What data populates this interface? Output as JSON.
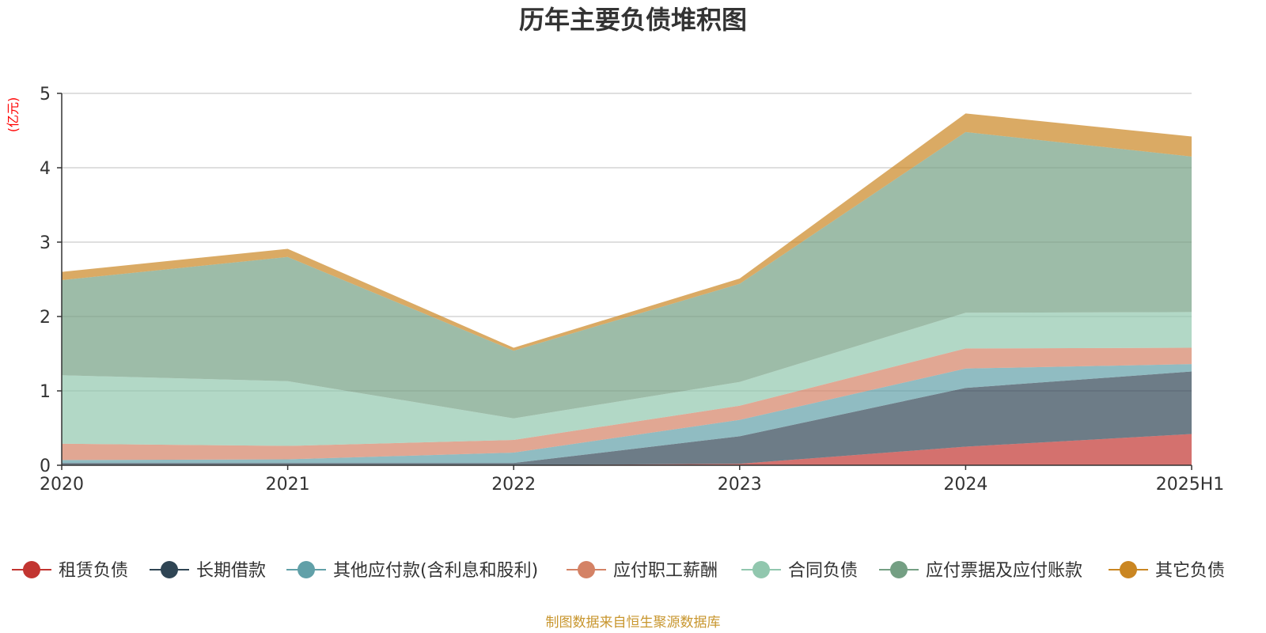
{
  "chart_data": {
    "type": "area",
    "stacked": true,
    "title": "历年主要负债堆积图",
    "unit": "(亿元)",
    "x": [
      "2020",
      "2021",
      "2022",
      "2023",
      "2024",
      "2025H1"
    ],
    "ylim": [
      0,
      5
    ],
    "yticks": [
      0,
      1,
      2,
      3,
      4,
      5
    ],
    "grid": true,
    "legend_position": "bottom",
    "series": [
      {
        "name": "租赁负债",
        "color": "#c23531",
        "values": [
          0.0,
          0.0,
          0.0,
          0.02,
          0.25,
          0.42
        ]
      },
      {
        "name": "长期借款",
        "color": "#2f4554",
        "values": [
          0.03,
          0.03,
          0.03,
          0.37,
          0.79,
          0.84
        ]
      },
      {
        "name": "其他应付款(含利息和股利)",
        "color": "#61a0a8",
        "values": [
          0.04,
          0.05,
          0.14,
          0.22,
          0.26,
          0.1
        ]
      },
      {
        "name": "应付职工薪酬",
        "color": "#d48265",
        "values": [
          0.22,
          0.18,
          0.17,
          0.19,
          0.27,
          0.22
        ]
      },
      {
        "name": "合同负债",
        "color": "#91c7ae",
        "values": [
          0.92,
          0.87,
          0.29,
          0.32,
          0.48,
          0.48
        ]
      },
      {
        "name": "应付票据及应付账款",
        "color": "#749f83",
        "values": [
          1.28,
          1.67,
          0.91,
          1.32,
          2.43,
          2.09
        ]
      },
      {
        "name": "其它负债",
        "color": "#ca8622",
        "values": [
          0.11,
          0.11,
          0.04,
          0.07,
          0.25,
          0.27
        ]
      }
    ]
  },
  "footer": {
    "source": "制图数据来自恒生聚源数据库",
    "source_color": "#c8962e"
  }
}
